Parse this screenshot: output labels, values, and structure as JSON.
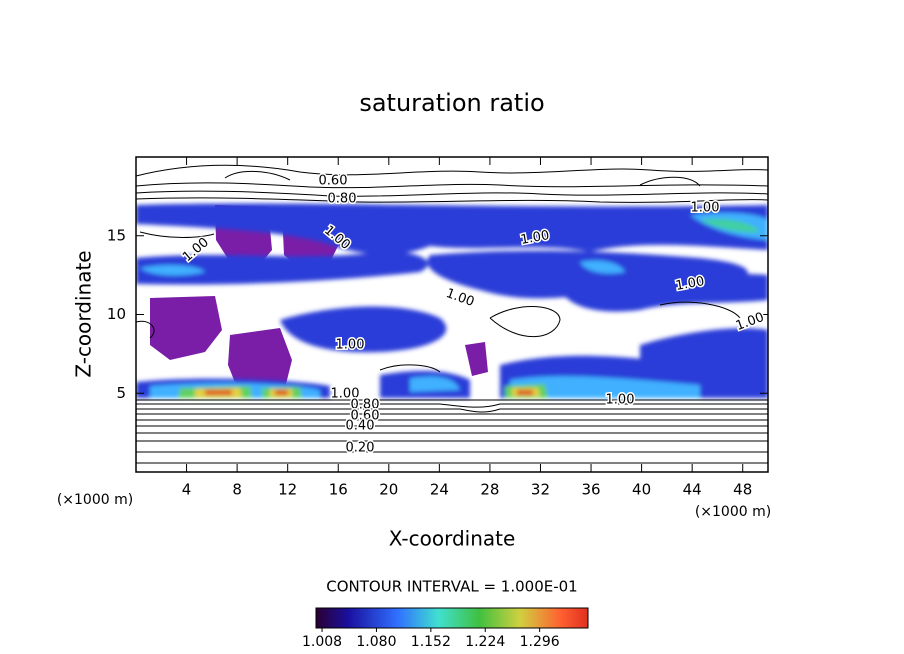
{
  "chart_data": {
    "type": "contour",
    "title": "saturation ratio",
    "xlabel": "X-coordinate",
    "ylabel": "Z-coordinate",
    "x_unit": "(×1000 m)",
    "xlim": [
      0,
      50
    ],
    "ylim": [
      0,
      20
    ],
    "xticks": [
      4,
      8,
      12,
      16,
      20,
      24,
      28,
      32,
      36,
      40,
      44,
      48
    ],
    "yticks": [
      5,
      10,
      15
    ],
    "contour_interval_label": "CONTOUR INTERVAL = 1.000E-01",
    "colorbar": {
      "lim": [
        1.0,
        1.36
      ],
      "ticks": [
        1.008,
        {
          "value": 1.08,
          "label": "1.080"
        },
        1.152,
        1.224,
        1.296
      ]
    },
    "contour_labels": [
      {
        "value": 0.6,
        "label": "0.60"
      },
      {
        "value": 0.8,
        "label": "0.80"
      },
      {
        "value": 1,
        "label": "1.00"
      },
      {
        "value": 1,
        "label": "1.00"
      },
      {
        "value": 1,
        "label": "1.00"
      },
      {
        "value": 1,
        "label": "1.00"
      },
      {
        "value": 1,
        "label": "1.00"
      },
      {
        "value": 1,
        "label": "1.00"
      },
      {
        "value": 1,
        "label": "1.00"
      },
      {
        "value": 1,
        "label": "1.00"
      },
      {
        "value": 1,
        "label": "1.00"
      },
      {
        "value": 1,
        "label": "1.00"
      },
      {
        "value": 0.8,
        "label": "0.80"
      },
      {
        "value": 0.6,
        "label": "0.60"
      },
      {
        "value": 0.4,
        "label": "0.40"
      },
      {
        "value": 0.2,
        "label": "0.20"
      }
    ]
  }
}
